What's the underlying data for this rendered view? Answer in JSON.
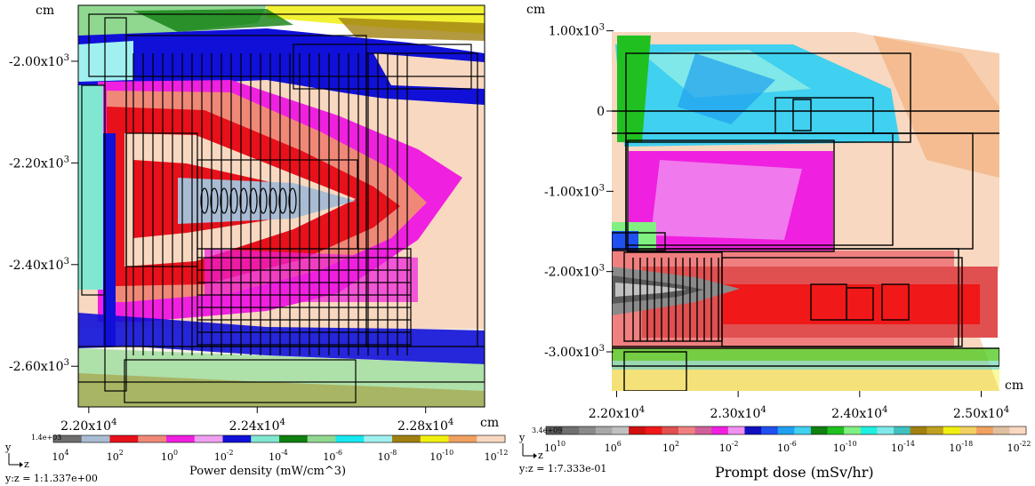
{
  "chart_data": [
    {
      "type": "heatmap",
      "xlabel": "",
      "x_unit": "cm",
      "y_unit": "cm",
      "x_ticks": [
        {
          "value": 22000,
          "label": "2.20x10",
          "exp": "4"
        },
        {
          "value": 22400,
          "label": "2.24x10",
          "exp": "4"
        },
        {
          "value": 22800,
          "label": "2.28x10",
          "exp": "4"
        }
      ],
      "y_ticks": [
        {
          "value": -2000,
          "label": "-2.00x10",
          "exp": "3"
        },
        {
          "value": -2200,
          "label": "-2.20x10",
          "exp": "3"
        },
        {
          "value": -2400,
          "label": "-2.40x10",
          "exp": "3"
        },
        {
          "value": -2600,
          "label": "-2.60x10",
          "exp": "3"
        }
      ],
      "xlim": [
        21975,
        22940
      ],
      "ylim": [
        -2680,
        -1890
      ],
      "colorbar": {
        "title": "Power density (mW/cm^3)",
        "max_label": "1.4e+03",
        "colors": [
          "#6e6e6e",
          "#a9bcd4",
          "#e8101a",
          "#f08878",
          "#f020e0",
          "#f0a0f0",
          "#1010d8",
          "#80e8d0",
          "#108010",
          "#90d890",
          "#18e8f0",
          "#a0f0f0",
          "#a08010",
          "#f0f010",
          "#f0a060",
          "#f8d8c0"
        ],
        "ticks": [
          {
            "base": "10",
            "exp": "4"
          },
          {
            "base": "10",
            "exp": "2"
          },
          {
            "base": "10",
            "exp": "0"
          },
          {
            "base": "10",
            "exp": "-2"
          },
          {
            "base": "10",
            "exp": "-4"
          },
          {
            "base": "10",
            "exp": "-6"
          },
          {
            "base": "10",
            "exp": "-8"
          },
          {
            "base": "10",
            "exp": "-10"
          },
          {
            "base": "10",
            "exp": "-12"
          }
        ]
      },
      "axis_indicator": {
        "y": "y",
        "z": "z"
      },
      "aspect_label": "y:z = 1:1.337e+00"
    },
    {
      "type": "heatmap",
      "xlabel": "",
      "x_unit": "cm",
      "y_unit": "cm",
      "x_ticks": [
        {
          "value": 22000,
          "label": "2.20x10",
          "exp": "4"
        },
        {
          "value": 23000,
          "label": "2.30x10",
          "exp": "4"
        },
        {
          "value": 24000,
          "label": "2.40x10",
          "exp": "4"
        },
        {
          "value": 25000,
          "label": "2.50x10",
          "exp": "4"
        }
      ],
      "y_ticks": [
        {
          "value": 1000,
          "label": "1.00x10",
          "exp": "3"
        },
        {
          "value": 0,
          "label": "0",
          "exp": ""
        },
        {
          "value": -1000,
          "label": "-1.00x10",
          "exp": "3"
        },
        {
          "value": -2000,
          "label": "-2.00x10",
          "exp": "3"
        },
        {
          "value": -3000,
          "label": "-3.00x10",
          "exp": "3"
        }
      ],
      "xlim": [
        21700,
        25100
      ],
      "ylim": [
        -3400,
        1250
      ],
      "colorbar": {
        "title": "Prompt dose (mSv/hr)",
        "max_label": "3.4e+09",
        "colors": [
          "#5a5a5a",
          "#707070",
          "#8a8a8a",
          "#a8a8a8",
          "#c0c0c0",
          "#d01010",
          "#f01818",
          "#e05050",
          "#f08080",
          "#d0609a",
          "#f020e0",
          "#f090f0",
          "#1010c0",
          "#2050f0",
          "#20a0f0",
          "#40d0f0",
          "#108010",
          "#20c020",
          "#80f080",
          "#20f0e0",
          "#80e8e8",
          "#40c0c0",
          "#a08010",
          "#c0a020",
          "#f0f010",
          "#f0d060",
          "#f0a060",
          "#e0c0a0",
          "#f8d8c0"
        ],
        "ticks": [
          {
            "base": "10",
            "exp": "10"
          },
          {
            "base": "10",
            "exp": "6"
          },
          {
            "base": "10",
            "exp": "2"
          },
          {
            "base": "10",
            "exp": "-2"
          },
          {
            "base": "10",
            "exp": "-6"
          },
          {
            "base": "10",
            "exp": "-10"
          },
          {
            "base": "10",
            "exp": "-14"
          },
          {
            "base": "10",
            "exp": "-18"
          },
          {
            "base": "10",
            "exp": "-22"
          }
        ]
      },
      "axis_indicator": {
        "y": "y",
        "z": "z"
      },
      "aspect_label": "y:z = 1:7.333e-01"
    }
  ]
}
